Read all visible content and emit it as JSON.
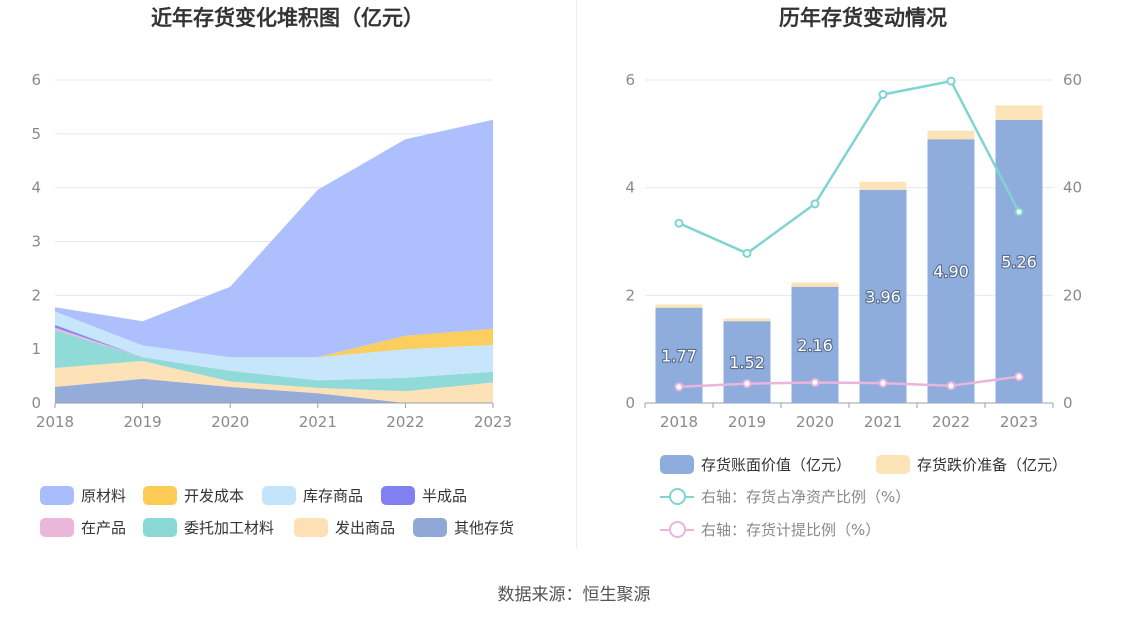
{
  "chart_data": [
    {
      "type": "area",
      "stacked": true,
      "title": "近年存货变化堆积图（亿元）",
      "x": [
        "2018",
        "2019",
        "2020",
        "2021",
        "2022",
        "2023"
      ],
      "ylim": [
        0,
        6
      ],
      "yticks": [
        "0",
        "1",
        "2",
        "3",
        "4",
        "5",
        "6"
      ],
      "grid": true,
      "legend_position": "bottom",
      "series": [
        {
          "name": "其他存货",
          "color": "#90a8d6",
          "values": [
            0.3,
            0.45,
            0.3,
            0.18,
            0.0,
            0.0
          ]
        },
        {
          "name": "发出商品",
          "color": "#fde0b4",
          "values": [
            0.35,
            0.33,
            0.1,
            0.1,
            0.22,
            0.38
          ]
        },
        {
          "name": "委托加工材料",
          "color": "#8ad8d6",
          "values": [
            0.7,
            0.07,
            0.2,
            0.14,
            0.25,
            0.2
          ]
        },
        {
          "name": "在产品",
          "color": "#eab6da",
          "values": [
            0.05,
            0.0,
            0.0,
            0.0,
            0.0,
            0.0
          ]
        },
        {
          "name": "半成品",
          "color": "#8080f0",
          "values": [
            0.05,
            0.0,
            0.0,
            0.0,
            0.0,
            0.0
          ]
        },
        {
          "name": "库存商品",
          "color": "#c4e4fb",
          "values": [
            0.25,
            0.22,
            0.25,
            0.43,
            0.53,
            0.5
          ]
        },
        {
          "name": "开发成本",
          "color": "#fccb55",
          "values": [
            0.0,
            0.0,
            0.0,
            0.0,
            0.25,
            0.3
          ]
        },
        {
          "name": "原材料",
          "color": "#a9bdfd",
          "values": [
            0.08,
            0.45,
            1.31,
            3.11,
            3.65,
            3.88
          ]
        }
      ],
      "legend_order": [
        "原材料",
        "开发成本",
        "库存商品",
        "半成品",
        "在产品",
        "委托加工材料",
        "发出商品",
        "其他存货"
      ]
    },
    {
      "type": "bar",
      "stacked": true,
      "title": "历年存货变动情况",
      "categories": [
        "2018",
        "2019",
        "2020",
        "2021",
        "2022",
        "2023"
      ],
      "ylim": [
        0,
        6
      ],
      "yticks": [
        "0",
        "2",
        "4",
        "6"
      ],
      "y2lim": [
        0,
        60
      ],
      "y2ticks": [
        "0",
        "20",
        "40",
        "60"
      ],
      "grid": true,
      "legend_position": "bottom",
      "series": [
        {
          "name": "存货账面价值（亿元）",
          "color": "#8eacdc",
          "type": "bar",
          "axis": "left",
          "values": [
            1.77,
            1.52,
            2.16,
            3.96,
            4.9,
            5.26
          ],
          "labels": [
            "1.77",
            "1.52",
            "2.16",
            "3.96",
            "4.90",
            "5.26"
          ]
        },
        {
          "name": "存货跌价准备（亿元）",
          "color": "#fde4b8",
          "type": "bar",
          "axis": "left",
          "values": [
            0.06,
            0.05,
            0.08,
            0.15,
            0.16,
            0.27
          ]
        },
        {
          "name": "右轴：存货占净资产比例（%）",
          "color": "#7fd4d4",
          "type": "line",
          "axis": "right",
          "values": [
            33.4,
            27.8,
            37.0,
            57.3,
            59.8,
            35.5
          ]
        },
        {
          "name": "右轴：存货计提比例（%）",
          "color": "#e9b5dd",
          "type": "line",
          "axis": "right",
          "values": [
            3.0,
            3.6,
            3.8,
            3.7,
            3.2,
            4.9
          ]
        }
      ]
    }
  ],
  "footer": {
    "source": "数据来源：恒生聚源"
  }
}
